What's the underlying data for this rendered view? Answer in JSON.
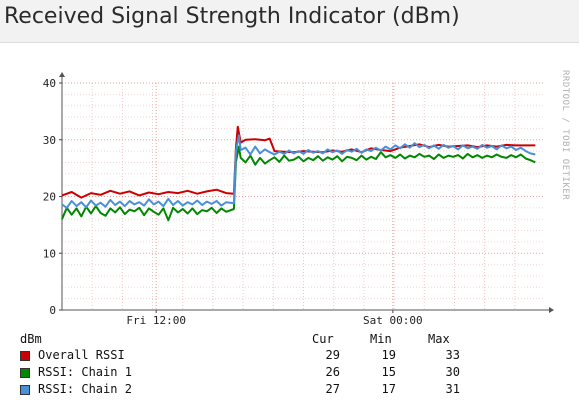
{
  "title": "Received Signal Strength Indicator (dBm)",
  "watermark": "RRDTOOL / TOBI OETIKER",
  "chart_data": {
    "type": "line",
    "ylabel": "dBm",
    "ylim": [
      0,
      40
    ],
    "yticks": [
      0,
      10,
      20,
      30,
      40
    ],
    "xlim": [
      0,
      100
    ],
    "x_ticks": [
      {
        "x": 19.5,
        "label": "Fri 12:00"
      },
      {
        "x": 68.5,
        "label": "Sat 00:00"
      }
    ],
    "series": [
      {
        "name": "Overall RSSI",
        "color": "#cc0000",
        "points": [
          [
            0,
            20.2
          ],
          [
            2,
            20.8
          ],
          [
            4,
            19.8
          ],
          [
            6,
            20.6
          ],
          [
            8,
            20.3
          ],
          [
            10,
            21.0
          ],
          [
            12,
            20.5
          ],
          [
            14,
            20.9
          ],
          [
            16,
            20.2
          ],
          [
            18,
            20.7
          ],
          [
            20,
            20.4
          ],
          [
            22,
            20.8
          ],
          [
            24,
            20.6
          ],
          [
            26,
            21.0
          ],
          [
            28,
            20.5
          ],
          [
            30,
            20.9
          ],
          [
            32,
            21.2
          ],
          [
            34,
            20.6
          ],
          [
            35.6,
            20.5
          ],
          [
            36,
            28.5
          ],
          [
            36.4,
            32.3
          ],
          [
            37,
            29.5
          ],
          [
            38,
            30.0
          ],
          [
            40,
            30.1
          ],
          [
            42,
            29.9
          ],
          [
            43,
            30.2
          ],
          [
            44,
            28.0
          ],
          [
            46,
            27.9
          ],
          [
            48,
            27.8
          ],
          [
            50,
            28.0
          ],
          [
            52,
            27.9
          ],
          [
            54,
            27.8
          ],
          [
            56,
            28.1
          ],
          [
            58,
            27.9
          ],
          [
            60,
            28.3
          ],
          [
            62,
            27.8
          ],
          [
            64,
            28.5
          ],
          [
            66,
            28.2
          ],
          [
            68,
            28.0
          ],
          [
            70,
            28.6
          ],
          [
            72,
            28.9
          ],
          [
            74,
            29.2
          ],
          [
            76,
            28.7
          ],
          [
            78,
            29.1
          ],
          [
            80,
            28.8
          ],
          [
            82,
            28.9
          ],
          [
            84,
            29.0
          ],
          [
            86,
            28.7
          ],
          [
            88,
            29.0
          ],
          [
            90,
            28.8
          ],
          [
            92,
            29.1
          ],
          [
            94,
            29.0
          ],
          [
            96,
            29.0
          ],
          [
            98,
            29.0
          ]
        ]
      },
      {
        "name": "RSSI: Chain 1",
        "color": "#008800",
        "points": [
          [
            0,
            16.0
          ],
          [
            1,
            18.0
          ],
          [
            2,
            16.8
          ],
          [
            3,
            17.9
          ],
          [
            4,
            16.5
          ],
          [
            5,
            18.2
          ],
          [
            6,
            17.0
          ],
          [
            7,
            18.3
          ],
          [
            8,
            17.1
          ],
          [
            9,
            16.6
          ],
          [
            10,
            17.9
          ],
          [
            11,
            17.2
          ],
          [
            12,
            18.1
          ],
          [
            13,
            16.9
          ],
          [
            14,
            17.7
          ],
          [
            15,
            17.4
          ],
          [
            16,
            18.0
          ],
          [
            17,
            16.7
          ],
          [
            18,
            17.9
          ],
          [
            19,
            17.3
          ],
          [
            20,
            16.8
          ],
          [
            21,
            17.9
          ],
          [
            22,
            15.8
          ],
          [
            23,
            18.0
          ],
          [
            24,
            17.2
          ],
          [
            25,
            17.8
          ],
          [
            26,
            17.0
          ],
          [
            27,
            17.9
          ],
          [
            28,
            16.9
          ],
          [
            29,
            17.6
          ],
          [
            30,
            17.4
          ],
          [
            31,
            18.0
          ],
          [
            32,
            17.1
          ],
          [
            33,
            17.9
          ],
          [
            34,
            17.3
          ],
          [
            35.6,
            17.8
          ],
          [
            36,
            26.0
          ],
          [
            36.6,
            28.8
          ],
          [
            37,
            26.8
          ],
          [
            38,
            26.0
          ],
          [
            39,
            27.2
          ],
          [
            40,
            25.6
          ],
          [
            41,
            26.8
          ],
          [
            42,
            25.8
          ],
          [
            43,
            26.4
          ],
          [
            44,
            26.9
          ],
          [
            45,
            26.1
          ],
          [
            46,
            27.2
          ],
          [
            47,
            26.3
          ],
          [
            48,
            26.5
          ],
          [
            49,
            27.0
          ],
          [
            50,
            26.2
          ],
          [
            51,
            26.8
          ],
          [
            52,
            26.4
          ],
          [
            53,
            27.1
          ],
          [
            54,
            26.3
          ],
          [
            55,
            26.9
          ],
          [
            56,
            26.5
          ],
          [
            57,
            27.1
          ],
          [
            58,
            26.2
          ],
          [
            59,
            27.0
          ],
          [
            60,
            26.8
          ],
          [
            61,
            26.4
          ],
          [
            62,
            27.2
          ],
          [
            63,
            26.5
          ],
          [
            64,
            27.0
          ],
          [
            65,
            26.6
          ],
          [
            66,
            27.8
          ],
          [
            67,
            26.9
          ],
          [
            68,
            27.3
          ],
          [
            69,
            26.8
          ],
          [
            70,
            27.4
          ],
          [
            71,
            26.7
          ],
          [
            72,
            27.2
          ],
          [
            73,
            26.9
          ],
          [
            74,
            27.5
          ],
          [
            75,
            27.0
          ],
          [
            76,
            27.2
          ],
          [
            77,
            26.6
          ],
          [
            78,
            27.4
          ],
          [
            79,
            26.8
          ],
          [
            80,
            27.2
          ],
          [
            81,
            27.0
          ],
          [
            82,
            27.3
          ],
          [
            83,
            26.7
          ],
          [
            84,
            27.5
          ],
          [
            85,
            26.9
          ],
          [
            86,
            27.3
          ],
          [
            87,
            26.8
          ],
          [
            88,
            27.2
          ],
          [
            89,
            26.9
          ],
          [
            90,
            27.4
          ],
          [
            91,
            27.0
          ],
          [
            92,
            26.8
          ],
          [
            93,
            27.3
          ],
          [
            94,
            26.9
          ],
          [
            95,
            27.4
          ],
          [
            96,
            26.7
          ],
          [
            97,
            26.4
          ],
          [
            98,
            26.0
          ]
        ]
      },
      {
        "name": "RSSI: Chain 2",
        "color": "#4a90d9",
        "points": [
          [
            0,
            18.6
          ],
          [
            1,
            18.0
          ],
          [
            2,
            19.2
          ],
          [
            3,
            18.3
          ],
          [
            4,
            19.0
          ],
          [
            5,
            18.1
          ],
          [
            6,
            19.3
          ],
          [
            7,
            18.4
          ],
          [
            8,
            18.9
          ],
          [
            9,
            18.2
          ],
          [
            10,
            19.4
          ],
          [
            11,
            18.5
          ],
          [
            12,
            19.1
          ],
          [
            13,
            18.3
          ],
          [
            14,
            19.2
          ],
          [
            15,
            18.6
          ],
          [
            16,
            19.0
          ],
          [
            17,
            18.4
          ],
          [
            18,
            19.5
          ],
          [
            19,
            18.6
          ],
          [
            20,
            19.1
          ],
          [
            21,
            18.3
          ],
          [
            22,
            19.6
          ],
          [
            23,
            18.5
          ],
          [
            24,
            19.2
          ],
          [
            25,
            18.4
          ],
          [
            26,
            19.0
          ],
          [
            27,
            18.6
          ],
          [
            28,
            19.3
          ],
          [
            29,
            18.5
          ],
          [
            30,
            19.1
          ],
          [
            31,
            18.7
          ],
          [
            32,
            19.2
          ],
          [
            33,
            18.4
          ],
          [
            34,
            19.0
          ],
          [
            35.6,
            18.8
          ],
          [
            36,
            28.0
          ],
          [
            36.6,
            30.8
          ],
          [
            37,
            28.2
          ],
          [
            38,
            28.6
          ],
          [
            39,
            27.4
          ],
          [
            40,
            28.8
          ],
          [
            41,
            27.6
          ],
          [
            42,
            28.3
          ],
          [
            43,
            27.8
          ],
          [
            44,
            27.4
          ],
          [
            45,
            27.9
          ],
          [
            46,
            27.5
          ],
          [
            47,
            28.1
          ],
          [
            48,
            27.6
          ],
          [
            49,
            28.0
          ],
          [
            50,
            27.5
          ],
          [
            51,
            28.2
          ],
          [
            52,
            27.7
          ],
          [
            53,
            28.0
          ],
          [
            54,
            27.6
          ],
          [
            55,
            28.3
          ],
          [
            56,
            27.8
          ],
          [
            57,
            28.1
          ],
          [
            58,
            27.5
          ],
          [
            59,
            28.2
          ],
          [
            60,
            27.9
          ],
          [
            61,
            28.4
          ],
          [
            62,
            27.7
          ],
          [
            63,
            28.3
          ],
          [
            64,
            28.0
          ],
          [
            65,
            28.6
          ],
          [
            66,
            28.1
          ],
          [
            67,
            28.8
          ],
          [
            68,
            28.3
          ],
          [
            69,
            29.0
          ],
          [
            70,
            28.5
          ],
          [
            71,
            29.2
          ],
          [
            72,
            28.6
          ],
          [
            73,
            29.4
          ],
          [
            74,
            28.7
          ],
          [
            75,
            29.1
          ],
          [
            76,
            28.5
          ],
          [
            77,
            29.0
          ],
          [
            78,
            28.4
          ],
          [
            79,
            29.1
          ],
          [
            80,
            28.6
          ],
          [
            81,
            28.9
          ],
          [
            82,
            28.3
          ],
          [
            83,
            29.0
          ],
          [
            84,
            28.5
          ],
          [
            85,
            28.8
          ],
          [
            86,
            28.4
          ],
          [
            87,
            29.1
          ],
          [
            88,
            28.6
          ],
          [
            89,
            28.9
          ],
          [
            90,
            28.3
          ],
          [
            91,
            29.0
          ],
          [
            92,
            28.5
          ],
          [
            93,
            28.8
          ],
          [
            94,
            28.2
          ],
          [
            95,
            28.6
          ],
          [
            96,
            28.0
          ],
          [
            97,
            27.6
          ],
          [
            98,
            27.4
          ]
        ]
      }
    ],
    "grid": true
  },
  "legend": {
    "unit_label": "dBm",
    "col_cur": "Cur",
    "col_min": "Min",
    "col_max": "Max",
    "rows": [
      {
        "name": "Overall RSSI",
        "color": "#cc0000",
        "cur": "29",
        "min": "19",
        "max": "33"
      },
      {
        "name": "RSSI: Chain 1",
        "color": "#008800",
        "cur": "26",
        "min": "15",
        "max": "30"
      },
      {
        "name": "RSSI: Chain 2",
        "color": "#4a90d9",
        "cur": "27",
        "min": "17",
        "max": "31"
      }
    ]
  }
}
